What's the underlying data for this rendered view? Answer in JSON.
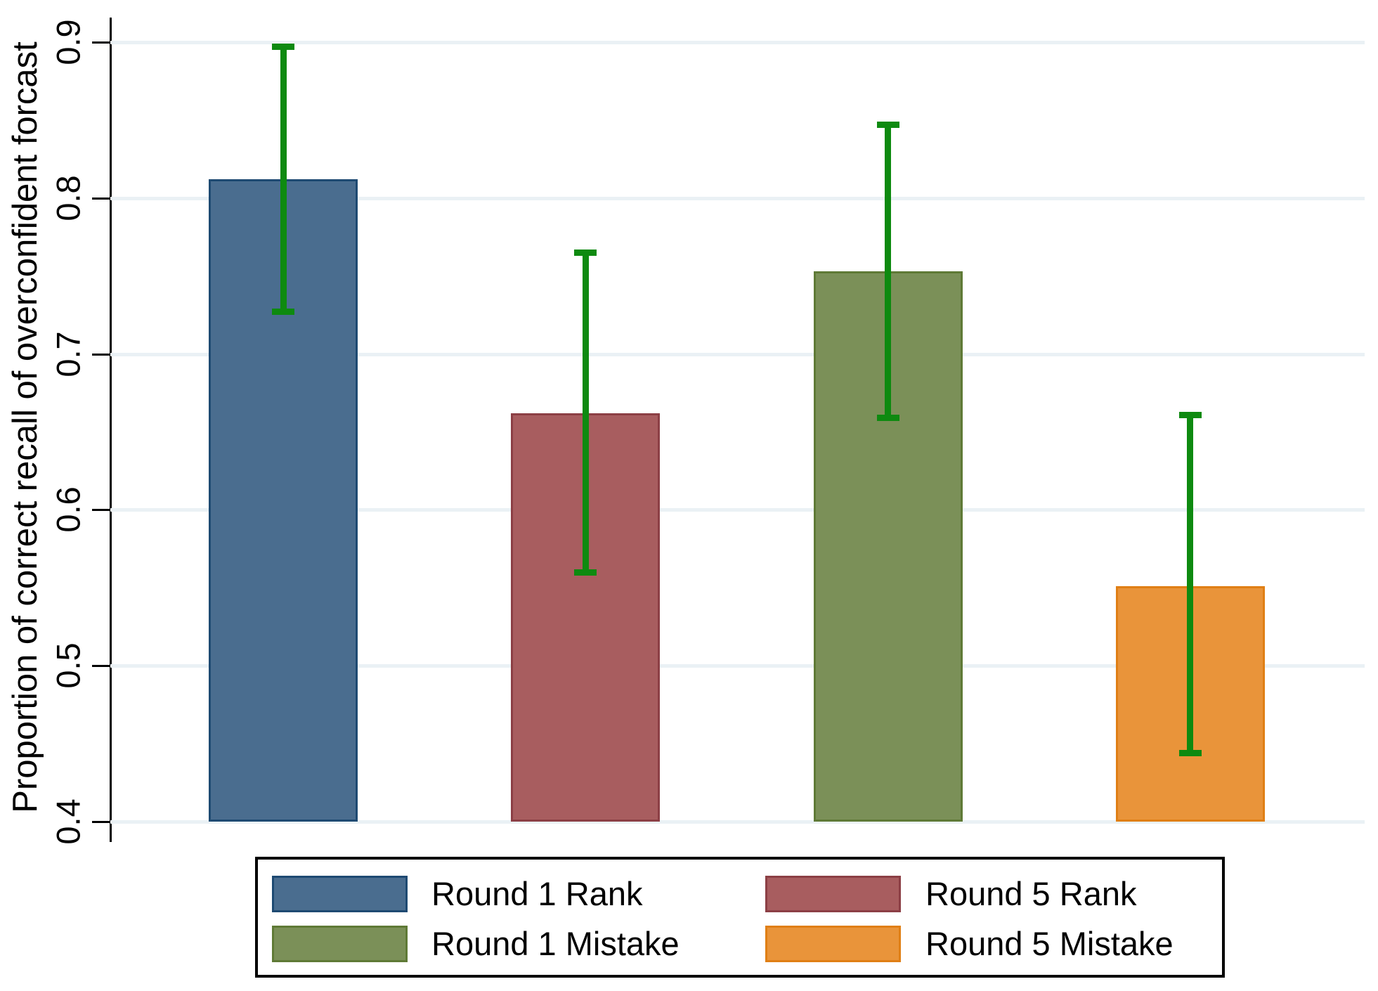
{
  "figure": {
    "background": "#ffffff",
    "axis_color": "#000000",
    "text_color": "#000000"
  },
  "y_axis": {
    "title": "Proportion of correct recall of overconfident forcast",
    "tick_labels": [
      "0.4",
      "0.5",
      "0.6",
      "0.7",
      "0.8",
      "0.9"
    ]
  },
  "chart_data": {
    "type": "bar",
    "title": "",
    "xlabel": "",
    "ylabel": "Proportion of correct recall of overconfident forcast",
    "ylim": [
      0.4,
      0.9
    ],
    "yticks": [
      0.4,
      0.5,
      0.6,
      0.7,
      0.8,
      0.9
    ],
    "grid": true,
    "gridline_color": "#eaf1f5",
    "error_bar_color": "#0e8a10",
    "legend_position": "bottom",
    "series": [
      {
        "name": "Round 1 Rank",
        "value": 0.812,
        "ci_low": 0.727,
        "ci_high": 0.897,
        "color": "#4a6d8f",
        "border": "#1e4a72"
      },
      {
        "name": "Round 5 Rank",
        "value": 0.662,
        "ci_low": 0.56,
        "ci_high": 0.765,
        "color": "#a85d5f",
        "border": "#8c3f45"
      },
      {
        "name": "Round 1 Mistake",
        "value": 0.753,
        "ci_low": 0.659,
        "ci_high": 0.847,
        "color": "#7b9058",
        "border": "#5f7a36"
      },
      {
        "name": "Round 5 Mistake",
        "value": 0.551,
        "ci_low": 0.444,
        "ci_high": 0.661,
        "color": "#e9943a",
        "border": "#e07f15"
      }
    ]
  },
  "legend": {
    "columns": [
      {
        "entries": [
          {
            "series_index": 0
          },
          {
            "series_index": 2
          }
        ]
      },
      {
        "entries": [
          {
            "series_index": 1
          },
          {
            "series_index": 3
          }
        ]
      }
    ]
  }
}
